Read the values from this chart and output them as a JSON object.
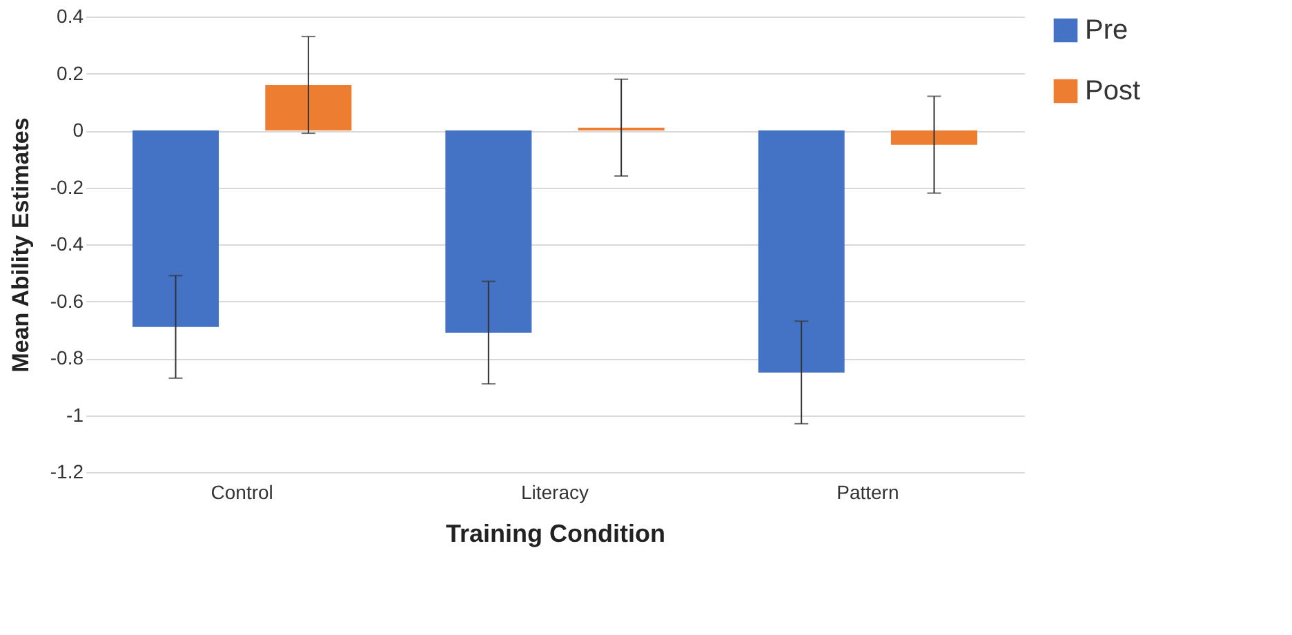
{
  "chart_data": {
    "type": "bar",
    "xlabel": "Training Condition",
    "ylabel": "Mean Ability Estimates",
    "categories": [
      "Control",
      "Literacy",
      "Pattern"
    ],
    "series": [
      {
        "name": "Pre",
        "color": "#4472c4",
        "values": [
          -0.69,
          -0.71,
          -0.85
        ],
        "errors": [
          0.18,
          0.18,
          0.18
        ]
      },
      {
        "name": "Post",
        "color": "#ed7d31",
        "values": [
          0.16,
          0.01,
          -0.05
        ],
        "errors": [
          0.17,
          0.17,
          0.17
        ]
      }
    ],
    "ylim": [
      -1.2,
      0.4
    ],
    "yticks": [
      -1.2,
      -1,
      -0.8,
      -0.6,
      -0.4,
      -0.2,
      0,
      0.2,
      0.4
    ],
    "grid": "y",
    "legend": "right"
  }
}
